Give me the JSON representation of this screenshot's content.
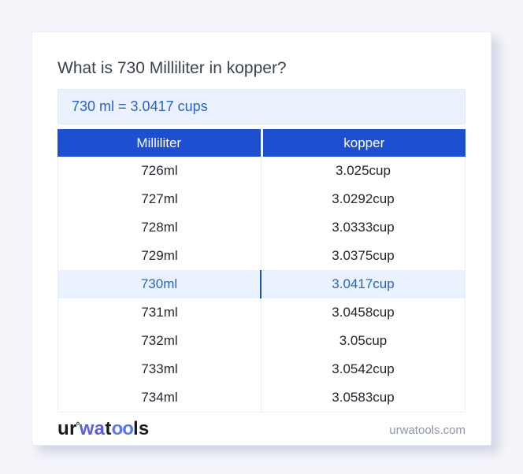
{
  "card": {
    "title": "What is 730 Milliliter in kopper?",
    "answer": "730 ml = 3.0417 cups"
  },
  "table": {
    "columns": {
      "from": "Milliliter",
      "to": "kopper"
    },
    "rows": [
      {
        "ml": "726ml",
        "cup": "3.025cup"
      },
      {
        "ml": "727ml",
        "cup": "3.0292cup"
      },
      {
        "ml": "728ml",
        "cup": "3.0333cup"
      },
      {
        "ml": "729ml",
        "cup": "3.0375cup"
      },
      {
        "ml": "730ml",
        "cup": "3.0417cup",
        "highlighted": true
      },
      {
        "ml": "731ml",
        "cup": "3.0458cup"
      },
      {
        "ml": "732ml",
        "cup": "3.05cup"
      },
      {
        "ml": "733ml",
        "cup": "3.0542cup"
      },
      {
        "ml": "734ml",
        "cup": "3.0583cup"
      }
    ],
    "highlighted_row": "730ml"
  },
  "footer": {
    "logo": {
      "seg1": "ur",
      "ring": "°",
      "seg2": "wa",
      "seg3": "t",
      "seg4": "oo",
      "seg5": "ls"
    },
    "site": "urwatools.com"
  },
  "colors": {
    "page_bg": "#f4f5fa",
    "accent_blue": "#1e4fd1",
    "answer_bg": "#e9f2fd",
    "answer_text": "#2b62c6",
    "highlight_bg": "#e9f2fe",
    "highlight_text": "#2465c8",
    "highlight_divider": "#19539f",
    "logo_blue": "#5c5ce4",
    "footer_text": "#8d96a6"
  }
}
